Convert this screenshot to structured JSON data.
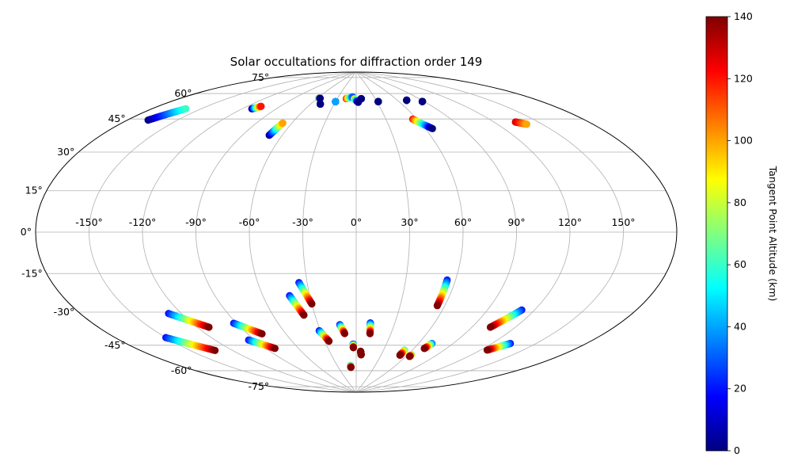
{
  "chart_data": {
    "type": "scatter",
    "projection": "aitoff",
    "title": "Solar occultations for diffraction order 149",
    "lon_ticks": [
      "-150°",
      "-120°",
      "-90°",
      "-60°",
      "-30°",
      "0°",
      "30°",
      "60°",
      "90°",
      "120°",
      "150°"
    ],
    "lat_ticks": [
      "75°",
      "60°",
      "45°",
      "30°",
      "15°",
      "0°",
      "-15°",
      "-30°",
      "-45°",
      "-60°",
      "-75°"
    ],
    "grid": true,
    "colorbar": {
      "label": "Tangent Point Altitude (km)",
      "colormap": "jet",
      "range": [
        0,
        140
      ],
      "ticks": [
        "0",
        "20",
        "40",
        "60",
        "80",
        "100",
        "120",
        "140"
      ]
    },
    "tracks": [
      {
        "start": [
          -168,
          47
        ],
        "end": [
          -160,
          55
        ],
        "alt": [
          0,
          60
        ]
      },
      {
        "start": [
          -112,
          63
        ],
        "end": [
          -108,
          65
        ],
        "alt": [
          0,
          120
        ]
      },
      {
        "start": [
          -70,
          52
        ],
        "end": [
          -68,
          59
        ],
        "alt": [
          0,
          100
        ]
      },
      {
        "start": [
          -58,
          74
        ],
        "end": [
          -56,
          74
        ],
        "alt": [
          120,
          0
        ]
      },
      {
        "start": [
          -48,
          71
        ],
        "end": [
          -48,
          71
        ],
        "alt": [
          0,
          0
        ]
      },
      {
        "start": [
          -30,
          73
        ],
        "end": [
          -30,
          73
        ],
        "alt": [
          0,
          40
        ]
      },
      {
        "start": [
          -16,
          75
        ],
        "end": [
          -6,
          76
        ],
        "alt": [
          120,
          30
        ]
      },
      {
        "start": [
          -3,
          75
        ],
        "end": [
          3,
          73
        ],
        "alt": [
          100,
          0
        ]
      },
      {
        "start": [
          8,
          75
        ],
        "end": [
          8,
          75
        ],
        "alt": [
          60,
          0
        ]
      },
      {
        "start": [
          32,
          73
        ],
        "end": [
          32,
          73
        ],
        "alt": [
          0,
          0
        ]
      },
      {
        "start": [
          72,
          72
        ],
        "end": [
          72,
          72
        ],
        "alt": [
          20,
          0
        ]
      },
      {
        "start": [
          88,
          70
        ],
        "end": [
          88,
          70
        ],
        "alt": [
          0,
          0
        ]
      },
      {
        "start": [
          56,
          62
        ],
        "end": [
          66,
          56
        ],
        "alt": [
          120,
          0
        ]
      },
      {
        "start": [
          135,
          52
        ],
        "end": [
          140,
          50
        ],
        "alt": [
          130,
          100
        ]
      },
      {
        "start": [
          -128,
          -38
        ],
        "end": [
          -112,
          -47
        ],
        "alt": [
          20,
          140
        ]
      },
      {
        "start": [
          -150,
          -47
        ],
        "end": [
          -133,
          -57
        ],
        "alt": [
          20,
          140
        ]
      },
      {
        "start": [
          -92,
          -47
        ],
        "end": [
          -79,
          -54
        ],
        "alt": [
          20,
          140
        ]
      },
      {
        "start": [
          -95,
          -56
        ],
        "end": [
          -82,
          -62
        ],
        "alt": [
          20,
          140
        ]
      },
      {
        "start": [
          -43,
          -35
        ],
        "end": [
          -38,
          -46
        ],
        "alt": [
          20,
          140
        ]
      },
      {
        "start": [
          -35,
          -28
        ],
        "end": [
          -30,
          -40
        ],
        "alt": [
          20,
          140
        ]
      },
      {
        "start": [
          -31,
          -55
        ],
        "end": [
          -26,
          -61
        ],
        "alt": [
          20,
          140
        ]
      },
      {
        "start": [
          -13,
          -52
        ],
        "end": [
          -10,
          -57
        ],
        "alt": [
          20,
          140
        ]
      },
      {
        "start": [
          -3,
          -63
        ],
        "end": [
          -3,
          -65
        ],
        "alt": [
          20,
          140
        ]
      },
      {
        "start": [
          5,
          -67
        ],
        "end": [
          6,
          -69
        ],
        "alt": [
          140,
          140
        ]
      },
      {
        "start": [
          11,
          -51
        ],
        "end": [
          12,
          -57
        ],
        "alt": [
          20,
          140
        ]
      },
      {
        "start": [
          -9,
          -75
        ],
        "end": [
          -9,
          -76
        ],
        "alt": [
          40,
          140
        ]
      },
      {
        "start": [
          55,
          -26
        ],
        "end": [
          55,
          -40
        ],
        "alt": [
          20,
          140
        ]
      },
      {
        "start": [
          52,
          -65
        ],
        "end": [
          52,
          -68
        ],
        "alt": [
          60,
          140
        ]
      },
      {
        "start": [
          64,
          -67
        ],
        "end": [
          64,
          -68
        ],
        "alt": [
          60,
          140
        ]
      },
      {
        "start": [
          72,
          -60
        ],
        "end": [
          70,
          -63
        ],
        "alt": [
          30,
          140
        ]
      },
      {
        "start": [
          112,
          -38
        ],
        "end": [
          103,
          -48
        ],
        "alt": [
          20,
          140
        ]
      },
      {
        "start": [
          133,
          -53
        ],
        "end": [
          125,
          -58
        ],
        "alt": [
          20,
          140
        ]
      }
    ]
  }
}
